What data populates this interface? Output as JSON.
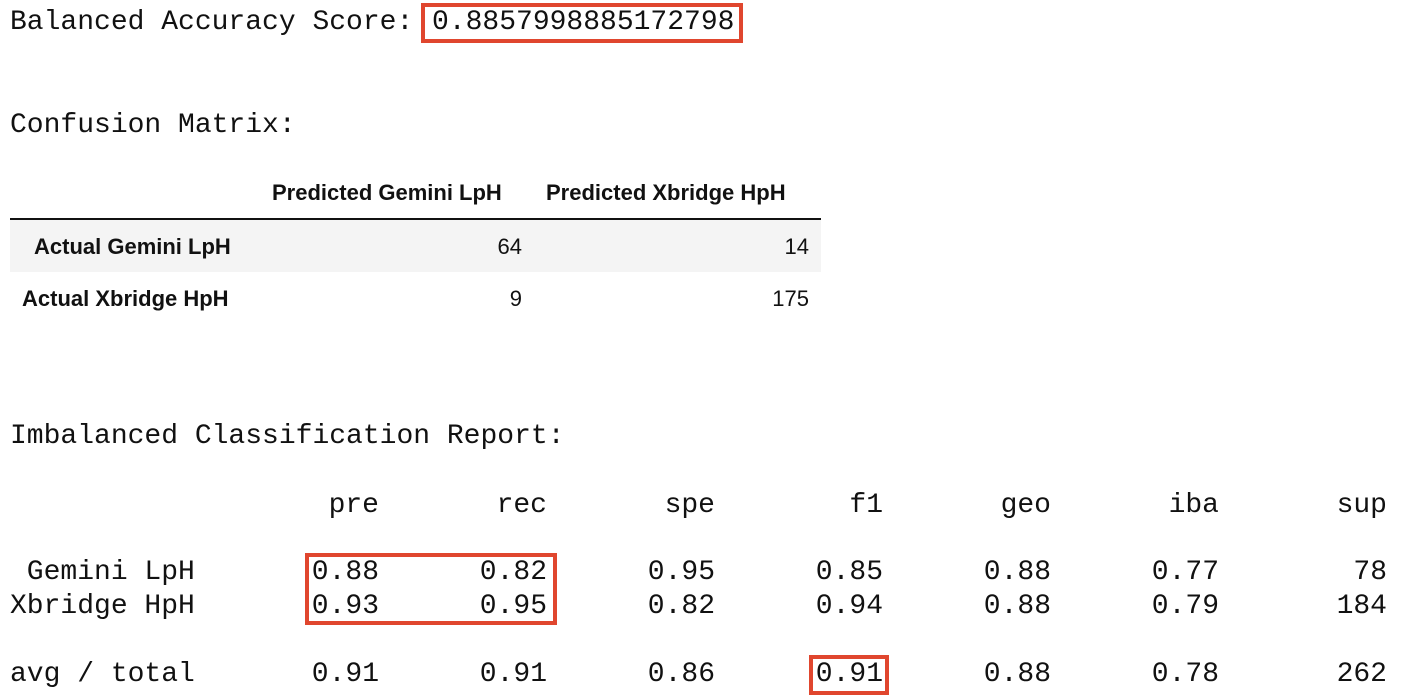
{
  "balanced_accuracy": {
    "label": "Balanced Accuracy Score:",
    "value": "0.8857998885172798"
  },
  "confusion_matrix": {
    "title": "Confusion Matrix:",
    "columns": [
      "Predicted Gemini LpH",
      "Predicted Xbridge HpH"
    ],
    "rows": [
      {
        "label": "Actual Gemini LpH",
        "values": [
          "64",
          "14"
        ]
      },
      {
        "label": "Actual Xbridge HpH",
        "values": [
          "9",
          "175"
        ]
      }
    ]
  },
  "report": {
    "title": "Imbalanced Classification Report:",
    "headers": [
      "pre",
      "rec",
      "spe",
      "f1",
      "geo",
      "iba",
      "sup"
    ],
    "rows": [
      {
        "label": " Gemini LpH",
        "values": [
          "0.88",
          "0.82",
          "0.95",
          "0.85",
          "0.88",
          "0.77",
          "78"
        ]
      },
      {
        "label": "Xbridge HpH",
        "values": [
          "0.93",
          "0.95",
          "0.82",
          "0.94",
          "0.88",
          "0.79",
          "184"
        ]
      },
      {
        "label": "avg / total",
        "values": [
          "0.91",
          "0.91",
          "0.86",
          "0.91",
          "0.88",
          "0.78",
          "262"
        ]
      }
    ]
  },
  "highlight_color": "#e0462e"
}
